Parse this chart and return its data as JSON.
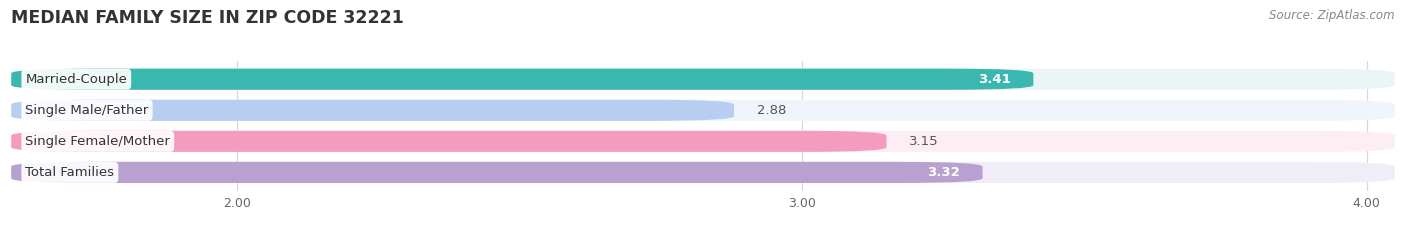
{
  "title": "MEDIAN FAMILY SIZE IN ZIP CODE 32221",
  "source": "Source: ZipAtlas.com",
  "categories": [
    "Married-Couple",
    "Single Male/Father",
    "Single Female/Mother",
    "Total Families"
  ],
  "values": [
    3.41,
    2.88,
    3.15,
    3.32
  ],
  "bar_colors": [
    "#3ab8b0",
    "#b8cef0",
    "#f49cc0",
    "#b8a0d0"
  ],
  "bar_bg_colors": [
    "#eaf6f6",
    "#f0f4fc",
    "#fdeef5",
    "#f0ecf8"
  ],
  "value_inside": [
    true,
    false,
    false,
    true
  ],
  "xlim": [
    1.6,
    4.05
  ],
  "xticks": [
    2.0,
    3.0,
    4.0
  ],
  "xtick_labels": [
    "2.00",
    "3.00",
    "4.00"
  ],
  "bar_height": 0.68,
  "bar_gap": 0.32,
  "label_fontsize": 9.5,
  "value_fontsize": 9.5,
  "title_fontsize": 12.5,
  "source_fontsize": 8.5,
  "background_color": "#ffffff"
}
